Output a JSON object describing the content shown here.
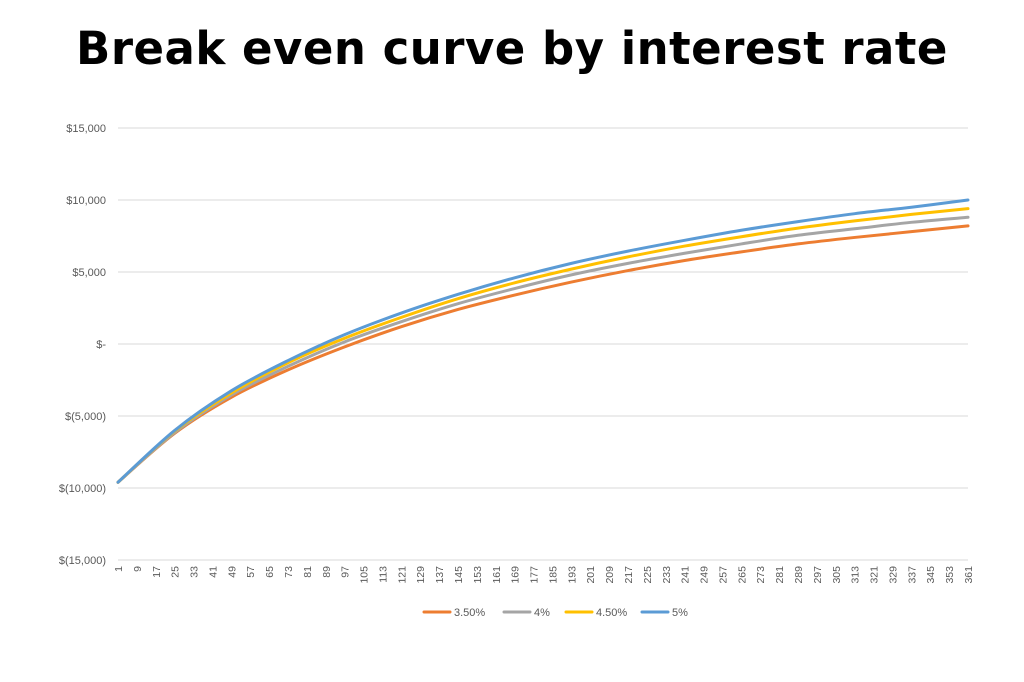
{
  "chart_data": {
    "type": "line",
    "title": "Break even curve by interest rate",
    "ylim": [
      -15000,
      15000
    ],
    "xlim": [
      1,
      361
    ],
    "y_ticks": [
      {
        "value": 15000,
        "label": "$15,000"
      },
      {
        "value": 10000,
        "label": "$10,000"
      },
      {
        "value": 5000,
        "label": "$5,000"
      },
      {
        "value": 0,
        "label": "$-"
      },
      {
        "value": -5000,
        "label": "$(5,000)"
      },
      {
        "value": -10000,
        "label": "$(10,000)"
      },
      {
        "value": -15000,
        "label": "$(15,000)"
      }
    ],
    "x_tick_start": 1,
    "x_tick_step": 8,
    "x_tick_end": 361,
    "grid": "horizontal",
    "legend_position": "bottom",
    "x": [
      1,
      25,
      49,
      73,
      97,
      121,
      145,
      169,
      193,
      217,
      241,
      265,
      289,
      313,
      337,
      361
    ],
    "series": [
      {
        "name": "3.50%",
        "color": "#ED7D31",
        "values": [
          -9600,
          -6200,
          -3700,
          -1800,
          -200,
          1200,
          2400,
          3400,
          4300,
          5100,
          5800,
          6400,
          6950,
          7400,
          7800,
          8200
        ]
      },
      {
        "name": "4%",
        "color": "#A5A5A5",
        "values": [
          -9600,
          -6150,
          -3550,
          -1550,
          150,
          1550,
          2800,
          3850,
          4800,
          5600,
          6300,
          6950,
          7550,
          8000,
          8450,
          8800
        ]
      },
      {
        "name": "4.50%",
        "color": "#FFC000",
        "values": [
          -9600,
          -6050,
          -3400,
          -1300,
          400,
          1850,
          3150,
          4250,
          5200,
          6050,
          6800,
          7450,
          8050,
          8550,
          9000,
          9400
        ]
      },
      {
        "name": "5%",
        "color": "#5B9BD5",
        "values": [
          -9600,
          -6000,
          -3250,
          -1150,
          650,
          2150,
          3450,
          4600,
          5600,
          6450,
          7200,
          7900,
          8500,
          9050,
          9500,
          10000
        ]
      }
    ]
  }
}
